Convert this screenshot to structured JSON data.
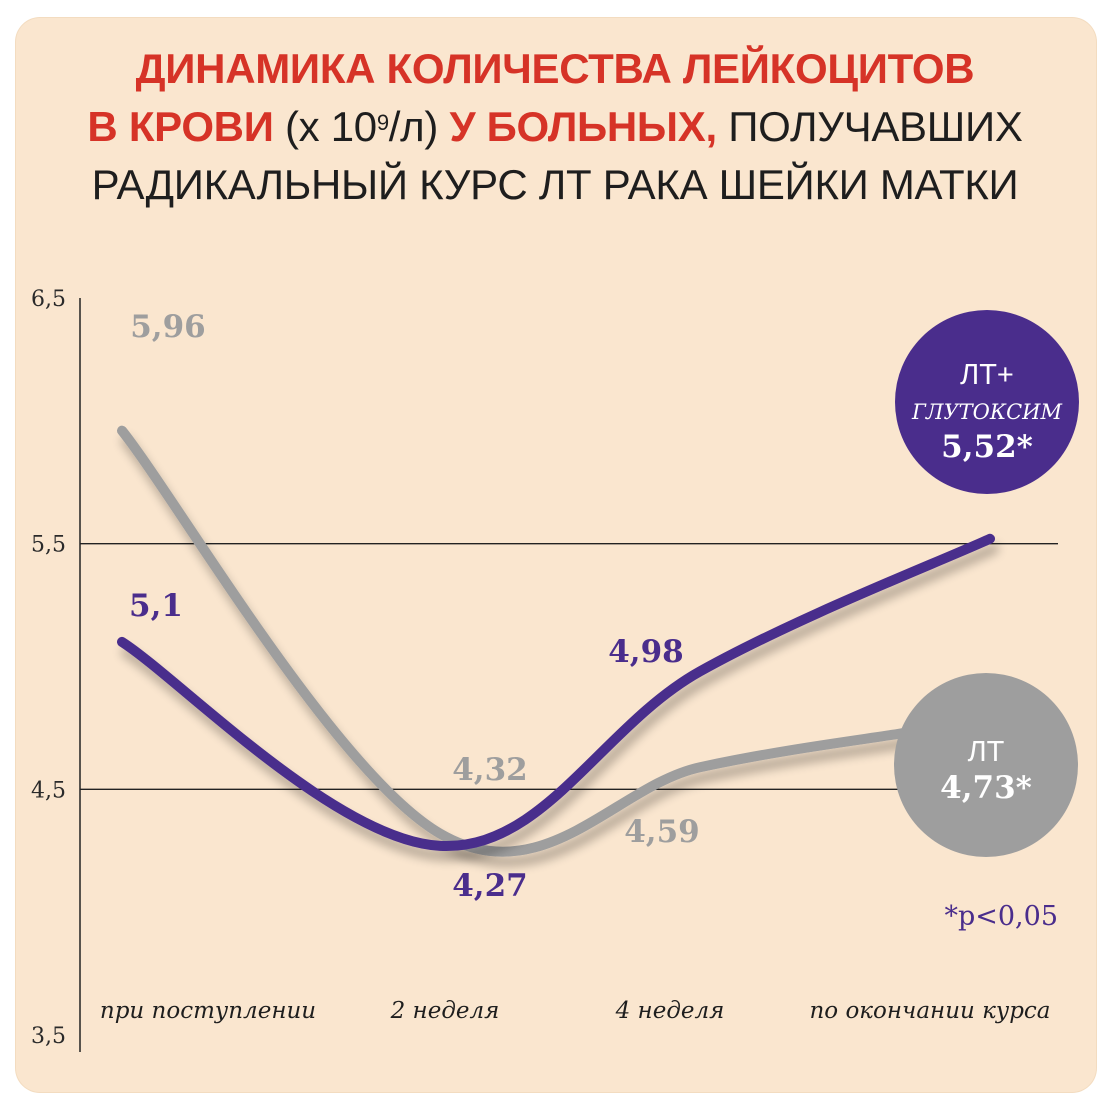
{
  "title": {
    "line1": "ДИНАМИКА КОЛИЧЕСТВА ЛЕЙКОЦИТОВ",
    "line2_red": "В КРОВИ",
    "line2_unit_pre": "(х 10",
    "line2_unit_sup": "9",
    "line2_unit_post": "/л)",
    "line2_red2": "У БОЛЬНЫХ,",
    "line2_plain": "ПОЛУЧАВШИХ",
    "line3": "РАДИКАЛЬНЫЙ КУРС ЛТ РАКА ШЕЙКИ МАТКИ"
  },
  "colors": {
    "purple": "#4a2d8c",
    "gray": "#9e9e9e",
    "red": "#d63327",
    "background": "#fae6cf"
  },
  "chart_data": {
    "type": "line",
    "categories": [
      "при поступлении",
      "2 неделя",
      "4 неделя",
      "по окончании курса"
    ],
    "ylim": [
      3.5,
      6.5
    ],
    "yticks": [
      "3,5",
      "4,5",
      "5,5",
      "6,5"
    ],
    "gridlines": [
      4.5,
      5.5
    ],
    "series": [
      {
        "name": "ЛТ+ ГЛУТОКСИМ",
        "color": "#4a2d8c",
        "values": [
          5.1,
          4.27,
          4.98,
          5.52
        ],
        "labels": [
          "5,1",
          "4,27",
          "4,98",
          "5,52*"
        ]
      },
      {
        "name": "ЛТ",
        "color": "#9e9e9e",
        "values": [
          5.96,
          4.32,
          4.59,
          4.73
        ],
        "labels": [
          "5,96",
          "4,32",
          "4,59",
          "4,73*"
        ]
      }
    ],
    "bubbles": [
      {
        "line1": "ЛТ+",
        "line2": "ГЛУТОКСИМ",
        "value": "5,52*",
        "color": "#4a2d8c"
      },
      {
        "line1": "ЛТ",
        "value": "4,73*",
        "color": "#9e9e9e"
      }
    ],
    "footnote": "*p<0,05"
  }
}
